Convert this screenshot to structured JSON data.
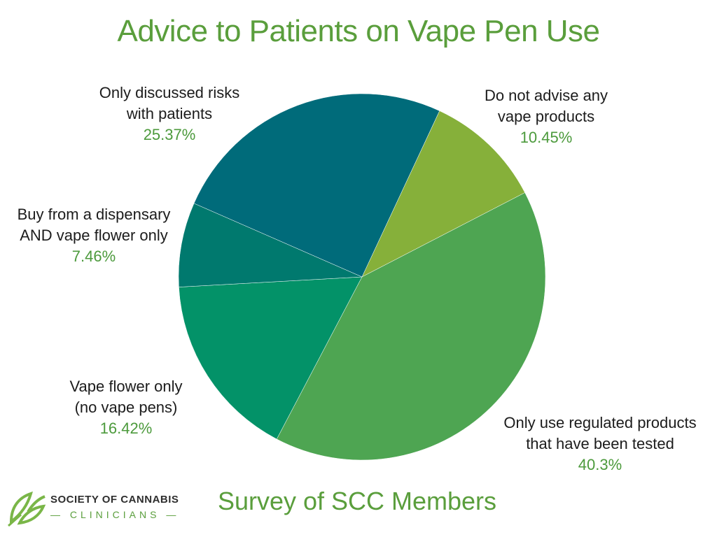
{
  "chart_data": {
    "type": "pie",
    "title": "Advice to Patients on Vape Pen Use",
    "subtitle": "Survey of SCC Members",
    "slices": [
      {
        "label_lines": [
          "Do not advise any",
          "vape products"
        ],
        "value": 10.45,
        "value_label": "10.45%",
        "color": "#86b03a"
      },
      {
        "label_lines": [
          "Only use regulated products",
          "that have been tested"
        ],
        "value": 40.3,
        "value_label": "40.3%",
        "color": "#4ea552"
      },
      {
        "label_lines": [
          "Vape flower only",
          "(no vape pens)"
        ],
        "value": 16.42,
        "value_label": "16.42%",
        "color": "#039268"
      },
      {
        "label_lines": [
          "Buy from a dispensary",
          "AND vape flower only"
        ],
        "value": 7.46,
        "value_label": "7.46%",
        "color": "#00796e"
      },
      {
        "label_lines": [
          "Only discussed risks",
          "with patients"
        ],
        "value": 25.37,
        "value_label": "25.37%",
        "color": "#006b7a"
      }
    ]
  },
  "logo": {
    "line1": "SOCIETY OF CANNABIS",
    "line2": "CLINICIANS",
    "color": "#5a9e3c"
  }
}
